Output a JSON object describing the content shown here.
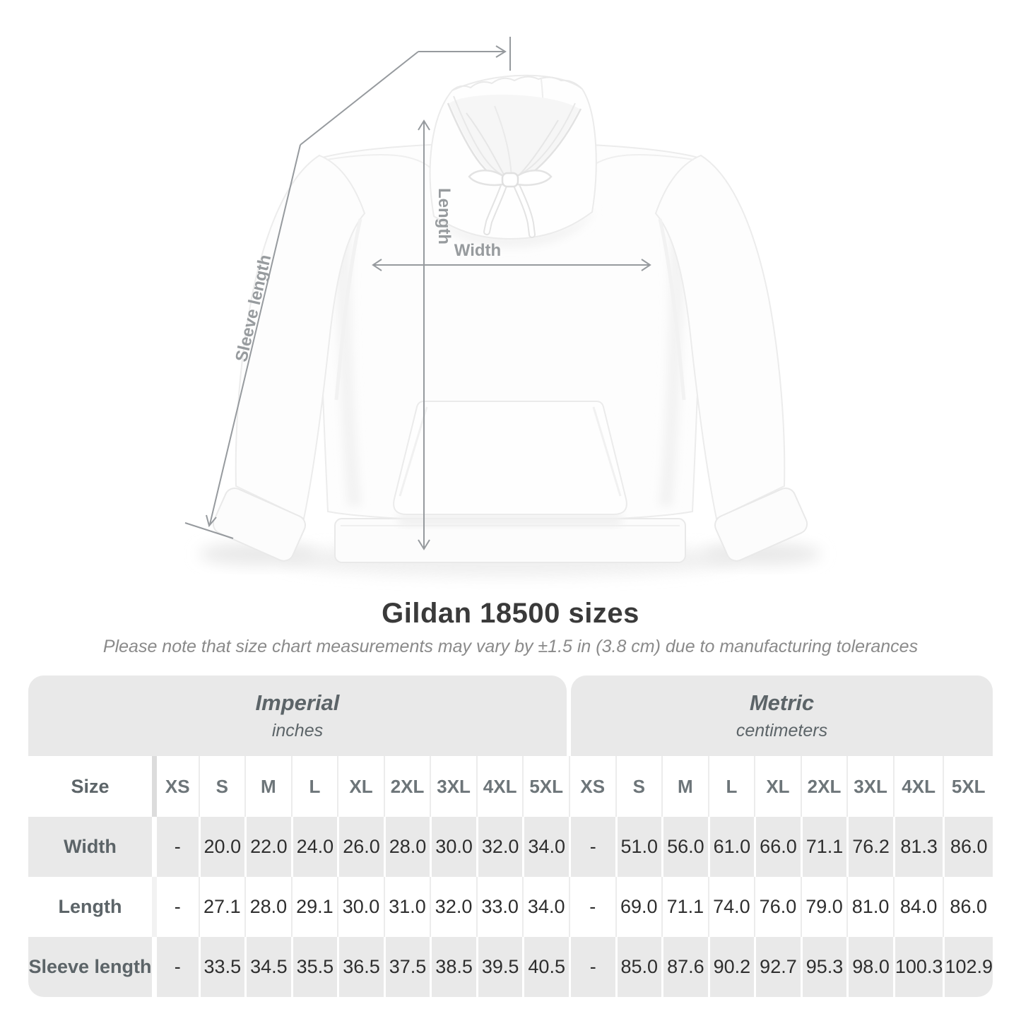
{
  "diagram": {
    "length_label": "Length",
    "width_label": "Width",
    "sleeve_label": "Sleeve length"
  },
  "title": "Gildan 18500 sizes",
  "note": "Please note that size chart measurements may vary by ±1.5 in (3.8 cm) due to manufacturing tolerances",
  "table": {
    "size_header": "Size",
    "sizes": [
      "XS",
      "S",
      "M",
      "L",
      "XL",
      "2XL",
      "3XL",
      "4XL",
      "5XL"
    ],
    "sections": [
      {
        "name": "Imperial",
        "unit": "inches"
      },
      {
        "name": "Metric",
        "unit": "centimeters"
      }
    ],
    "rows": [
      {
        "label": "Width",
        "imperial": [
          "-",
          "20.0",
          "22.0",
          "24.0",
          "26.0",
          "28.0",
          "30.0",
          "32.0",
          "34.0"
        ],
        "metric": [
          "-",
          "51.0",
          "56.0",
          "61.0",
          "66.0",
          "71.1",
          "76.2",
          "81.3",
          "86.0"
        ]
      },
      {
        "label": "Length",
        "imperial": [
          "-",
          "27.1",
          "28.0",
          "29.1",
          "30.0",
          "31.0",
          "32.0",
          "33.0",
          "34.0"
        ],
        "metric": [
          "-",
          "69.0",
          "71.1",
          "74.0",
          "76.0",
          "79.0",
          "81.0",
          "84.0",
          "86.0"
        ]
      },
      {
        "label": "Sleeve length",
        "imperial": [
          "-",
          "33.5",
          "34.5",
          "35.5",
          "36.5",
          "37.5",
          "38.5",
          "39.5",
          "40.5"
        ],
        "metric": [
          "-",
          "85.0",
          "87.6",
          "90.2",
          "92.7",
          "95.3",
          "98.0",
          "100.3",
          "102.9"
        ]
      }
    ]
  },
  "colors": {
    "annotation_gray": "#969a9e",
    "table_shade": "#e9e9e9",
    "value_text": "#2e2e2e",
    "size_header_text": "#6d7579",
    "label_text": "#5c6468",
    "title_text": "#3a3a3a",
    "note_text": "#8a8a8a"
  }
}
